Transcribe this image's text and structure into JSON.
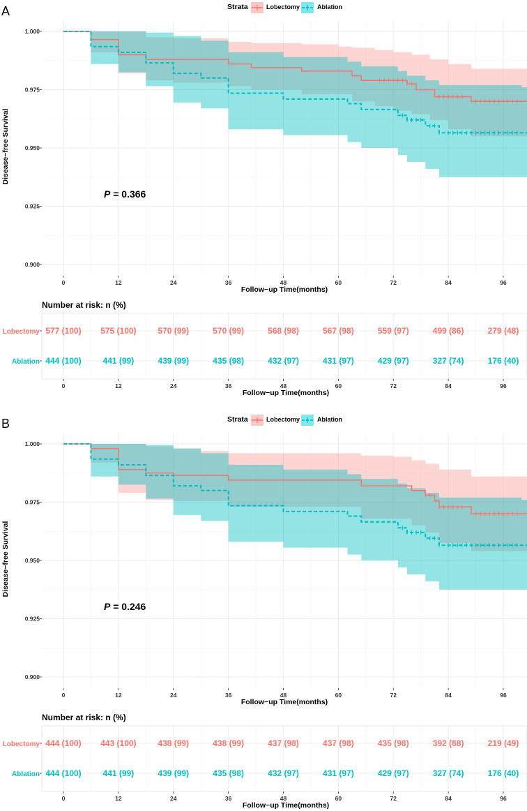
{
  "colors": {
    "lobectomy": "#F8766D",
    "ablation": "#00BFC4",
    "lobectomy_fill": "#FFC8C4",
    "ablation_fill": "#7FE8EC",
    "grid": "#EBEBEB"
  },
  "common": {
    "legend_title": "Strata",
    "legend_items": [
      "Lobectomy",
      "Ablation"
    ],
    "y_label": "Disease−free Survival",
    "x_label": "Follow−up Time(months)",
    "y_ticks": [
      "0.900",
      "0.925",
      "0.950",
      "0.975",
      "1.000"
    ],
    "x_ticks": [
      "0",
      "12",
      "24",
      "36",
      "48",
      "60",
      "72",
      "84",
      "96"
    ],
    "risk_title": "Number at risk: n (%)",
    "risk_row_labels": [
      "Lobectomy",
      "Ablation"
    ]
  },
  "chart_data": [
    {
      "panel": "A",
      "type": "line",
      "title": "",
      "p_prefix": "P",
      "p_value": "= 0.366",
      "xlim": [
        0,
        100
      ],
      "ylim": [
        0.9,
        1.0
      ],
      "series": [
        {
          "name": "Lobectomy",
          "steps": [
            [
              0,
              1.0
            ],
            [
              6,
              0.9965
            ],
            [
              12,
              0.99
            ],
            [
              18,
              0.988
            ],
            [
              36,
              0.986
            ],
            [
              41,
              0.9845
            ],
            [
              52,
              0.983
            ],
            [
              63,
              0.981
            ],
            [
              65,
              0.979
            ],
            [
              75,
              0.9775
            ],
            [
              77,
              0.975
            ],
            [
              81,
              0.972
            ],
            [
              89,
              0.97
            ],
            [
              100,
              0.97
            ]
          ],
          "upper": [
            [
              0,
              1.0
            ],
            [
              6,
              1.0
            ],
            [
              12,
              1.0
            ],
            [
              18,
              0.9975
            ],
            [
              24,
              0.997
            ],
            [
              36,
              0.9955
            ],
            [
              41,
              0.995
            ],
            [
              52,
              0.9945
            ],
            [
              60,
              0.9935
            ],
            [
              63,
              0.993
            ],
            [
              68,
              0.992
            ],
            [
              72,
              0.991
            ],
            [
              76,
              0.99
            ],
            [
              80,
              0.988
            ],
            [
              84,
              0.986
            ],
            [
              89,
              0.984
            ],
            [
              100,
              0.984
            ]
          ],
          "lower": [
            [
              0,
              1.0
            ],
            [
              6,
              0.991
            ],
            [
              12,
              0.982
            ],
            [
              18,
              0.979
            ],
            [
              24,
              0.978
            ],
            [
              36,
              0.9765
            ],
            [
              41,
              0.975
            ],
            [
              52,
              0.973
            ],
            [
              63,
              0.97
            ],
            [
              68,
              0.968
            ],
            [
              72,
              0.966
            ],
            [
              76,
              0.9645
            ],
            [
              80,
              0.962
            ],
            [
              84,
              0.958
            ],
            [
              89,
              0.955
            ],
            [
              100,
              0.955
            ]
          ],
          "censor_x": [
            69,
            70,
            71,
            72,
            73,
            74,
            75,
            76,
            82,
            83,
            84,
            85,
            86,
            87,
            90,
            91,
            92,
            93,
            94,
            95,
            96,
            97,
            98,
            99
          ]
        },
        {
          "name": "Ablation",
          "steps": [
            [
              0,
              1.0
            ],
            [
              6,
              0.9935
            ],
            [
              12,
              0.991
            ],
            [
              18,
              0.9865
            ],
            [
              24,
              0.982
            ],
            [
              30,
              0.98
            ],
            [
              36,
              0.9735
            ],
            [
              48,
              0.971
            ],
            [
              62,
              0.969
            ],
            [
              65,
              0.9665
            ],
            [
              73,
              0.964
            ],
            [
              75,
              0.962
            ],
            [
              79,
              0.9595
            ],
            [
              82,
              0.9565
            ],
            [
              100,
              0.9565
            ]
          ],
          "upper": [
            [
              0,
              1.0
            ],
            [
              6,
              1.0
            ],
            [
              12,
              1.0
            ],
            [
              18,
              0.9995
            ],
            [
              24,
              0.998
            ],
            [
              30,
              0.996
            ],
            [
              36,
              0.991
            ],
            [
              48,
              0.989
            ],
            [
              62,
              0.987
            ],
            [
              65,
              0.985
            ],
            [
              73,
              0.983
            ],
            [
              75,
              0.981
            ],
            [
              79,
              0.979
            ],
            [
              82,
              0.977
            ],
            [
              100,
              0.976
            ]
          ],
          "lower": [
            [
              0,
              1.0
            ],
            [
              6,
              0.986
            ],
            [
              12,
              0.9825
            ],
            [
              18,
              0.9765
            ],
            [
              24,
              0.9695
            ],
            [
              30,
              0.967
            ],
            [
              36,
              0.958
            ],
            [
              48,
              0.9555
            ],
            [
              62,
              0.9525
            ],
            [
              65,
              0.95
            ],
            [
              73,
              0.947
            ],
            [
              75,
              0.944
            ],
            [
              79,
              0.941
            ],
            [
              82,
              0.9375
            ],
            [
              100,
              0.9375
            ]
          ],
          "censor_x": [
            74,
            75,
            76,
            77,
            78,
            80,
            81,
            82,
            84,
            85,
            86,
            87,
            88,
            89,
            90,
            91,
            92,
            93,
            94,
            95,
            96,
            97,
            98,
            99
          ]
        }
      ],
      "risk_table": {
        "Lobectomy": [
          "577 (100)",
          "575 (100)",
          "570 (99)",
          "570 (99)",
          "568 (98)",
          "567 (98)",
          "559 (97)",
          "499 (86)",
          "279 (48)"
        ],
        "Ablation": [
          "444 (100)",
          "441 (99)",
          "439 (99)",
          "435 (98)",
          "432 (97)",
          "431 (97)",
          "429 (97)",
          "327 (74)",
          "176 (40)"
        ]
      }
    },
    {
      "panel": "B",
      "type": "line",
      "title": "",
      "p_prefix": "P",
      "p_value": "= 0.246",
      "xlim": [
        0,
        100
      ],
      "ylim": [
        0.9,
        1.0
      ],
      "series": [
        {
          "name": "Lobectomy",
          "steps": [
            [
              0,
              1.0
            ],
            [
              6,
              0.998
            ],
            [
              12,
              0.989
            ],
            [
              18,
              0.9875
            ],
            [
              24,
              0.9865
            ],
            [
              36,
              0.9845
            ],
            [
              65,
              0.982
            ],
            [
              76,
              0.98
            ],
            [
              79,
              0.978
            ],
            [
              81,
              0.9755
            ],
            [
              82,
              0.973
            ],
            [
              89,
              0.97
            ],
            [
              100,
              0.97
            ]
          ],
          "upper": [
            [
              0,
              1.0
            ],
            [
              6,
              1.0
            ],
            [
              12,
              1.0
            ],
            [
              18,
              0.999
            ],
            [
              24,
              0.998
            ],
            [
              30,
              0.997
            ],
            [
              36,
              0.996
            ],
            [
              65,
              0.995
            ],
            [
              72,
              0.9945
            ],
            [
              76,
              0.993
            ],
            [
              79,
              0.9915
            ],
            [
              82,
              0.989
            ],
            [
              89,
              0.986
            ],
            [
              100,
              0.986
            ]
          ],
          "lower": [
            [
              0,
              1.0
            ],
            [
              6,
              0.992
            ],
            [
              12,
              0.979
            ],
            [
              18,
              0.976
            ],
            [
              24,
              0.9755
            ],
            [
              36,
              0.973
            ],
            [
              65,
              0.968
            ],
            [
              76,
              0.965
            ],
            [
              79,
              0.962
            ],
            [
              82,
              0.9575
            ],
            [
              89,
              0.954
            ],
            [
              100,
              0.954
            ]
          ],
          "censor_x": [
            79,
            80,
            82,
            83,
            84,
            85,
            86,
            87,
            90,
            91,
            92,
            93,
            94,
            95,
            96,
            97,
            98,
            99
          ]
        },
        {
          "name": "Ablation",
          "steps": [
            [
              0,
              1.0
            ],
            [
              6,
              0.9935
            ],
            [
              12,
              0.991
            ],
            [
              18,
              0.9865
            ],
            [
              24,
              0.982
            ],
            [
              30,
              0.98
            ],
            [
              36,
              0.9735
            ],
            [
              48,
              0.971
            ],
            [
              62,
              0.969
            ],
            [
              65,
              0.9665
            ],
            [
              73,
              0.964
            ],
            [
              75,
              0.962
            ],
            [
              79,
              0.9595
            ],
            [
              82,
              0.9565
            ],
            [
              100,
              0.9565
            ]
          ],
          "upper": [
            [
              0,
              1.0
            ],
            [
              6,
              1.0
            ],
            [
              12,
              1.0
            ],
            [
              18,
              0.9995
            ],
            [
              24,
              0.998
            ],
            [
              30,
              0.996
            ],
            [
              36,
              0.991
            ],
            [
              48,
              0.989
            ],
            [
              62,
              0.987
            ],
            [
              65,
              0.985
            ],
            [
              73,
              0.983
            ],
            [
              75,
              0.981
            ],
            [
              79,
              0.979
            ],
            [
              82,
              0.977
            ],
            [
              100,
              0.976
            ]
          ],
          "lower": [
            [
              0,
              1.0
            ],
            [
              6,
              0.986
            ],
            [
              12,
              0.9825
            ],
            [
              18,
              0.9765
            ],
            [
              24,
              0.9695
            ],
            [
              30,
              0.967
            ],
            [
              36,
              0.958
            ],
            [
              48,
              0.9555
            ],
            [
              62,
              0.9525
            ],
            [
              65,
              0.95
            ],
            [
              73,
              0.947
            ],
            [
              75,
              0.944
            ],
            [
              79,
              0.941
            ],
            [
              82,
              0.9375
            ],
            [
              100,
              0.9375
            ]
          ],
          "censor_x": [
            74,
            75,
            76,
            77,
            78,
            80,
            81,
            82,
            84,
            85,
            86,
            87,
            88,
            89,
            90,
            91,
            92,
            93,
            94,
            95,
            96,
            97,
            98,
            99
          ]
        }
      ],
      "risk_table": {
        "Lobectomy": [
          "444 (100)",
          "443 (100)",
          "438 (99)",
          "438 (99)",
          "437 (98)",
          "437 (98)",
          "435 (98)",
          "392 (88)",
          "219 (49)"
        ],
        "Ablation": [
          "444 (100)",
          "441 (99)",
          "439 (99)",
          "435 (98)",
          "432 (97)",
          "431 (97)",
          "429 (97)",
          "327 (74)",
          "176 (40)"
        ]
      }
    }
  ]
}
